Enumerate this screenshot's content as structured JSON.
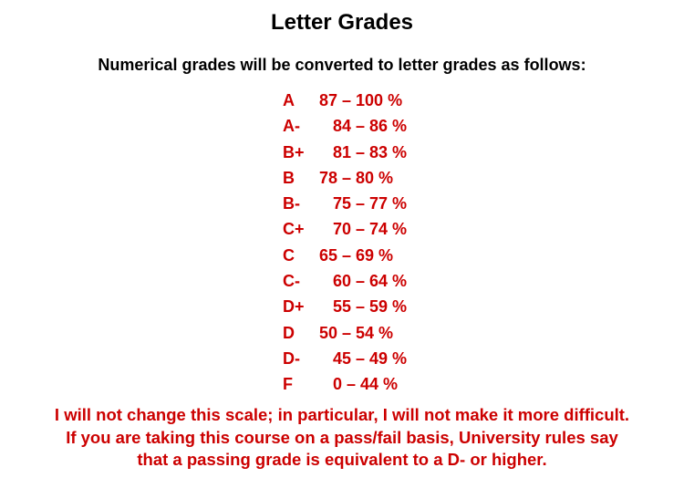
{
  "title": "Letter Grades",
  "subtitle": "Numerical grades will be converted to letter grades as follows:",
  "grades": [
    {
      "letter": "A",
      "range": "87 – 100 %"
    },
    {
      "letter": "A-",
      "range": "84 – 86 %"
    },
    {
      "letter": "B+",
      "range": "81 – 83 %"
    },
    {
      "letter": "B",
      "range": "78 – 80 %"
    },
    {
      "letter": "B-",
      "range": "75 – 77 %"
    },
    {
      "letter": "C+",
      "range": "70 – 74 %"
    },
    {
      "letter": "C",
      "range": "65 – 69 %"
    },
    {
      "letter": "C-",
      "range": "60 – 64 %"
    },
    {
      "letter": "D+",
      "range": "55 – 59 %"
    },
    {
      "letter": "D",
      "range": "50 – 54 %"
    },
    {
      "letter": "D-",
      "range": "45 – 49 %"
    },
    {
      "letter": "F",
      "range": "0 – 44 %"
    }
  ],
  "note": {
    "line1": "I will not change this scale; in particular, I will not make it more difficult.",
    "line2": "If you are taking this course on a pass/fail basis, University rules say",
    "line3": "that a passing grade is equivalent to a D- or higher."
  },
  "colors": {
    "heading": "#000000",
    "grades": "#cc0000",
    "note": "#cc0000",
    "background": "#ffffff"
  }
}
